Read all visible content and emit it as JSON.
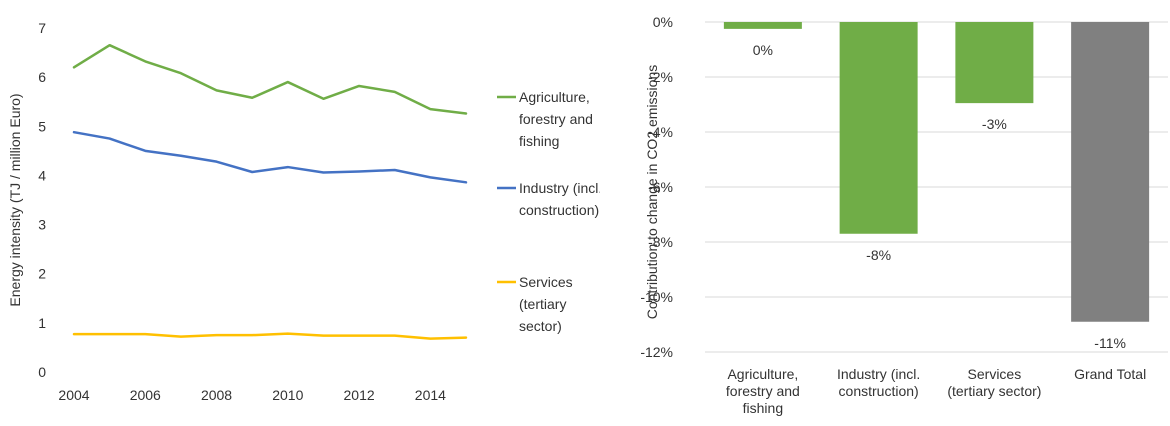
{
  "chart_data": [
    {
      "type": "line",
      "title": "",
      "xlabel": "",
      "ylabel": "Energy intensity (TJ / million Euro)",
      "x": [
        2004,
        2005,
        2006,
        2007,
        2008,
        2009,
        2010,
        2011,
        2012,
        2013,
        2014,
        2015
      ],
      "x_ticks": [
        "2004",
        "2006",
        "2008",
        "2010",
        "2012",
        "2014"
      ],
      "y_ticks": [
        "0",
        "1",
        "2",
        "3",
        "4",
        "5",
        "6",
        "7"
      ],
      "ylim": [
        0,
        7
      ],
      "grid": false,
      "legend_position": "right",
      "series": [
        {
          "name": "Agriculture, forestry and fishing",
          "name_lines": [
            "Agriculture,",
            "forestry and",
            "fishing"
          ],
          "color": "#70ad47",
          "values": [
            6.2,
            6.65,
            6.32,
            6.08,
            5.73,
            5.58,
            5.9,
            5.56,
            5.82,
            5.7,
            5.35,
            5.26
          ]
        },
        {
          "name": "Industry (incl. construction)",
          "name_lines": [
            "Industry (incl.",
            "construction)"
          ],
          "color": "#4472c4",
          "values": [
            4.88,
            4.75,
            4.5,
            4.4,
            4.28,
            4.07,
            4.17,
            4.06,
            4.08,
            4.11,
            3.96,
            3.86
          ]
        },
        {
          "name": "Services (tertiary sector)",
          "name_lines": [
            "Services",
            "(tertiary",
            "sector)"
          ],
          "color": "#ffc000",
          "values": [
            0.77,
            0.77,
            0.77,
            0.72,
            0.75,
            0.75,
            0.78,
            0.74,
            0.74,
            0.74,
            0.68,
            0.7
          ]
        }
      ]
    },
    {
      "type": "bar",
      "title": "",
      "xlabel": "",
      "ylabel": "Contribution to change in CO2 emissions",
      "categories": [
        "Agriculture, forestry and fishing",
        "Industry (incl. construction)",
        "Services (tertiary sector)",
        "Grand Total"
      ],
      "category_lines": [
        [
          "Agriculture,",
          "forestry and",
          "fishing"
        ],
        [
          "Industry (incl.",
          "construction)"
        ],
        [
          "Services",
          "(tertiary sector)"
        ],
        [
          "Grand Total"
        ]
      ],
      "values": [
        -0.25,
        -7.7,
        -2.95,
        -10.9
      ],
      "data_labels": [
        "0%",
        "-8%",
        "-3%",
        "-11%"
      ],
      "colors": [
        "#70ad47",
        "#70ad47",
        "#70ad47",
        "#808080"
      ],
      "y_ticks": [
        "0%",
        "-2%",
        "-4%",
        "-6%",
        "-8%",
        "-10%",
        "-12%"
      ],
      "ylim": [
        -12,
        0
      ],
      "grid": true
    }
  ]
}
